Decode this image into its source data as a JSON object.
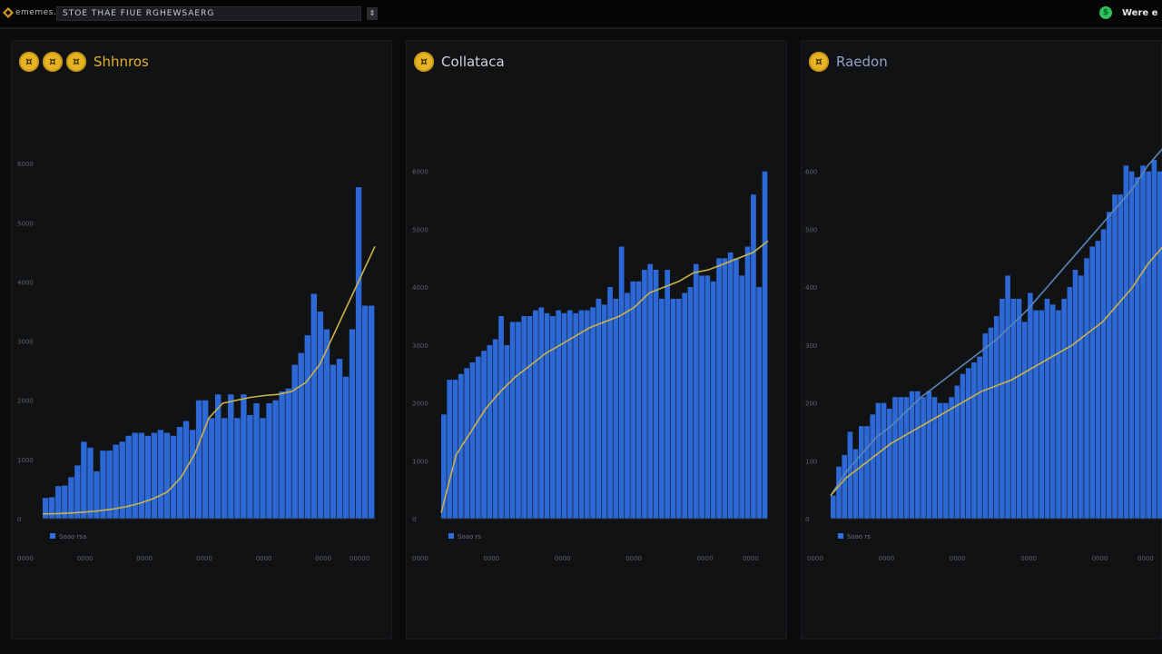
{
  "topbar": {
    "app_name": "ememes.",
    "search_value": "STOE THAE FIUE RGHEWSAERG",
    "search_button": "⇕",
    "user_name": "Were e"
  },
  "panels": [
    {
      "title": "Shhnros",
      "title_color": "#e0b02a",
      "coin_count": 3,
      "legend": "Soao rsa",
      "y_ticks": [
        "0",
        "1000",
        "2000",
        "3000",
        "4000",
        "5000",
        "6000"
      ],
      "x_ticks": [
        "0000",
        "0000",
        "0000",
        "0000",
        "0000",
        "0000",
        "00000"
      ]
    },
    {
      "title": "Collataca",
      "title_color": "#cfd3d8",
      "coin_count": 1,
      "legend": "Soao rs",
      "y_ticks": [
        "0",
        "1000",
        "2000",
        "3000",
        "4000",
        "5000",
        "6000"
      ],
      "x_ticks": [
        "0000",
        "0000",
        "0000",
        "0000",
        "0000",
        "0000"
      ]
    },
    {
      "title": "Raedon",
      "title_color": "#8fa4c8",
      "coin_count": 1,
      "legend": "Soao rs",
      "y_ticks": [
        "0",
        "100",
        "200",
        "300",
        "400",
        "500",
        "600"
      ],
      "x_ticks": [
        "0000",
        "0000",
        "0000",
        "0000",
        "0000",
        "0000"
      ]
    }
  ],
  "chart_data": [
    {
      "type": "bar",
      "title": "Shhnros",
      "ylim": [
        0,
        7000
      ],
      "bar_color": "#2f6fe0",
      "line_color": "#c9b24a",
      "values": [
        350,
        360,
        550,
        560,
        700,
        900,
        1300,
        1200,
        800,
        1150,
        1150,
        1250,
        1300,
        1400,
        1450,
        1450,
        1400,
        1450,
        1500,
        1450,
        1400,
        1550,
        1650,
        1500,
        2000,
        2000,
        1700,
        2100,
        1700,
        2100,
        1700,
        2100,
        1750,
        1950,
        1700,
        1950,
        2000,
        2150,
        2200,
        2600,
        2800,
        3100,
        3800,
        3500,
        3200,
        2600,
        2700,
        2400,
        3200,
        5600,
        3600,
        3600
      ],
      "trend": [
        80,
        85,
        95,
        110,
        130,
        160,
        200,
        260,
        340,
        450,
        700,
        1100,
        1700,
        1950,
        2000,
        2050,
        2080,
        2100,
        2150,
        2300,
        2600,
        3100,
        3600,
        4100,
        4600
      ]
    },
    {
      "type": "bar",
      "title": "Collataca",
      "ylim": [
        0,
        7000
      ],
      "bar_color": "#2f6fe0",
      "line_color": "#c9b24a",
      "values": [
        1800,
        2400,
        2400,
        2500,
        2600,
        2700,
        2800,
        2900,
        3000,
        3100,
        3500,
        3000,
        3400,
        3400,
        3500,
        3500,
        3600,
        3650,
        3550,
        3500,
        3600,
        3550,
        3600,
        3550,
        3600,
        3600,
        3650,
        3800,
        3700,
        4000,
        3800,
        4700,
        3900,
        4100,
        4100,
        4300,
        4400,
        4300,
        3800,
        4300,
        3800,
        3800,
        3900,
        4000,
        4400,
        4200,
        4200,
        4100,
        4500,
        4500,
        4600,
        4500,
        4200,
        4700,
        5600,
        4000,
        6000
      ],
      "trend": [
        100,
        1100,
        1500,
        1900,
        2200,
        2450,
        2650,
        2850,
        3000,
        3150,
        3300,
        3400,
        3500,
        3650,
        3900,
        4000,
        4100,
        4250,
        4300,
        4400,
        4500,
        4600,
        4800
      ]
    },
    {
      "type": "bar",
      "title": "Raedon",
      "ylim": [
        0,
        700
      ],
      "bar_color": "#2f6fe0",
      "line_color": "#c9b24a",
      "line2_color": "#5a86b8",
      "values": [
        40,
        90,
        110,
        150,
        120,
        160,
        160,
        180,
        200,
        200,
        190,
        210,
        210,
        210,
        220,
        220,
        210,
        220,
        210,
        200,
        200,
        210,
        230,
        250,
        260,
        270,
        280,
        320,
        330,
        350,
        380,
        420,
        380,
        380,
        340,
        390,
        360,
        360,
        380,
        370,
        360,
        380,
        400,
        430,
        420,
        450,
        470,
        480,
        500,
        530,
        560,
        560,
        610,
        600,
        590,
        610,
        600,
        620,
        600
      ],
      "trend": [
        40,
        70,
        90,
        110,
        130,
        145,
        160,
        175,
        190,
        205,
        220,
        230,
        240,
        255,
        270,
        285,
        300,
        320,
        340,
        370,
        400,
        440,
        470
      ],
      "trend2": [
        40,
        80,
        110,
        140,
        160,
        185,
        210,
        230,
        250,
        270,
        290,
        310,
        335,
        360,
        390,
        420,
        450,
        480,
        510,
        540,
        570,
        610,
        640
      ]
    }
  ]
}
